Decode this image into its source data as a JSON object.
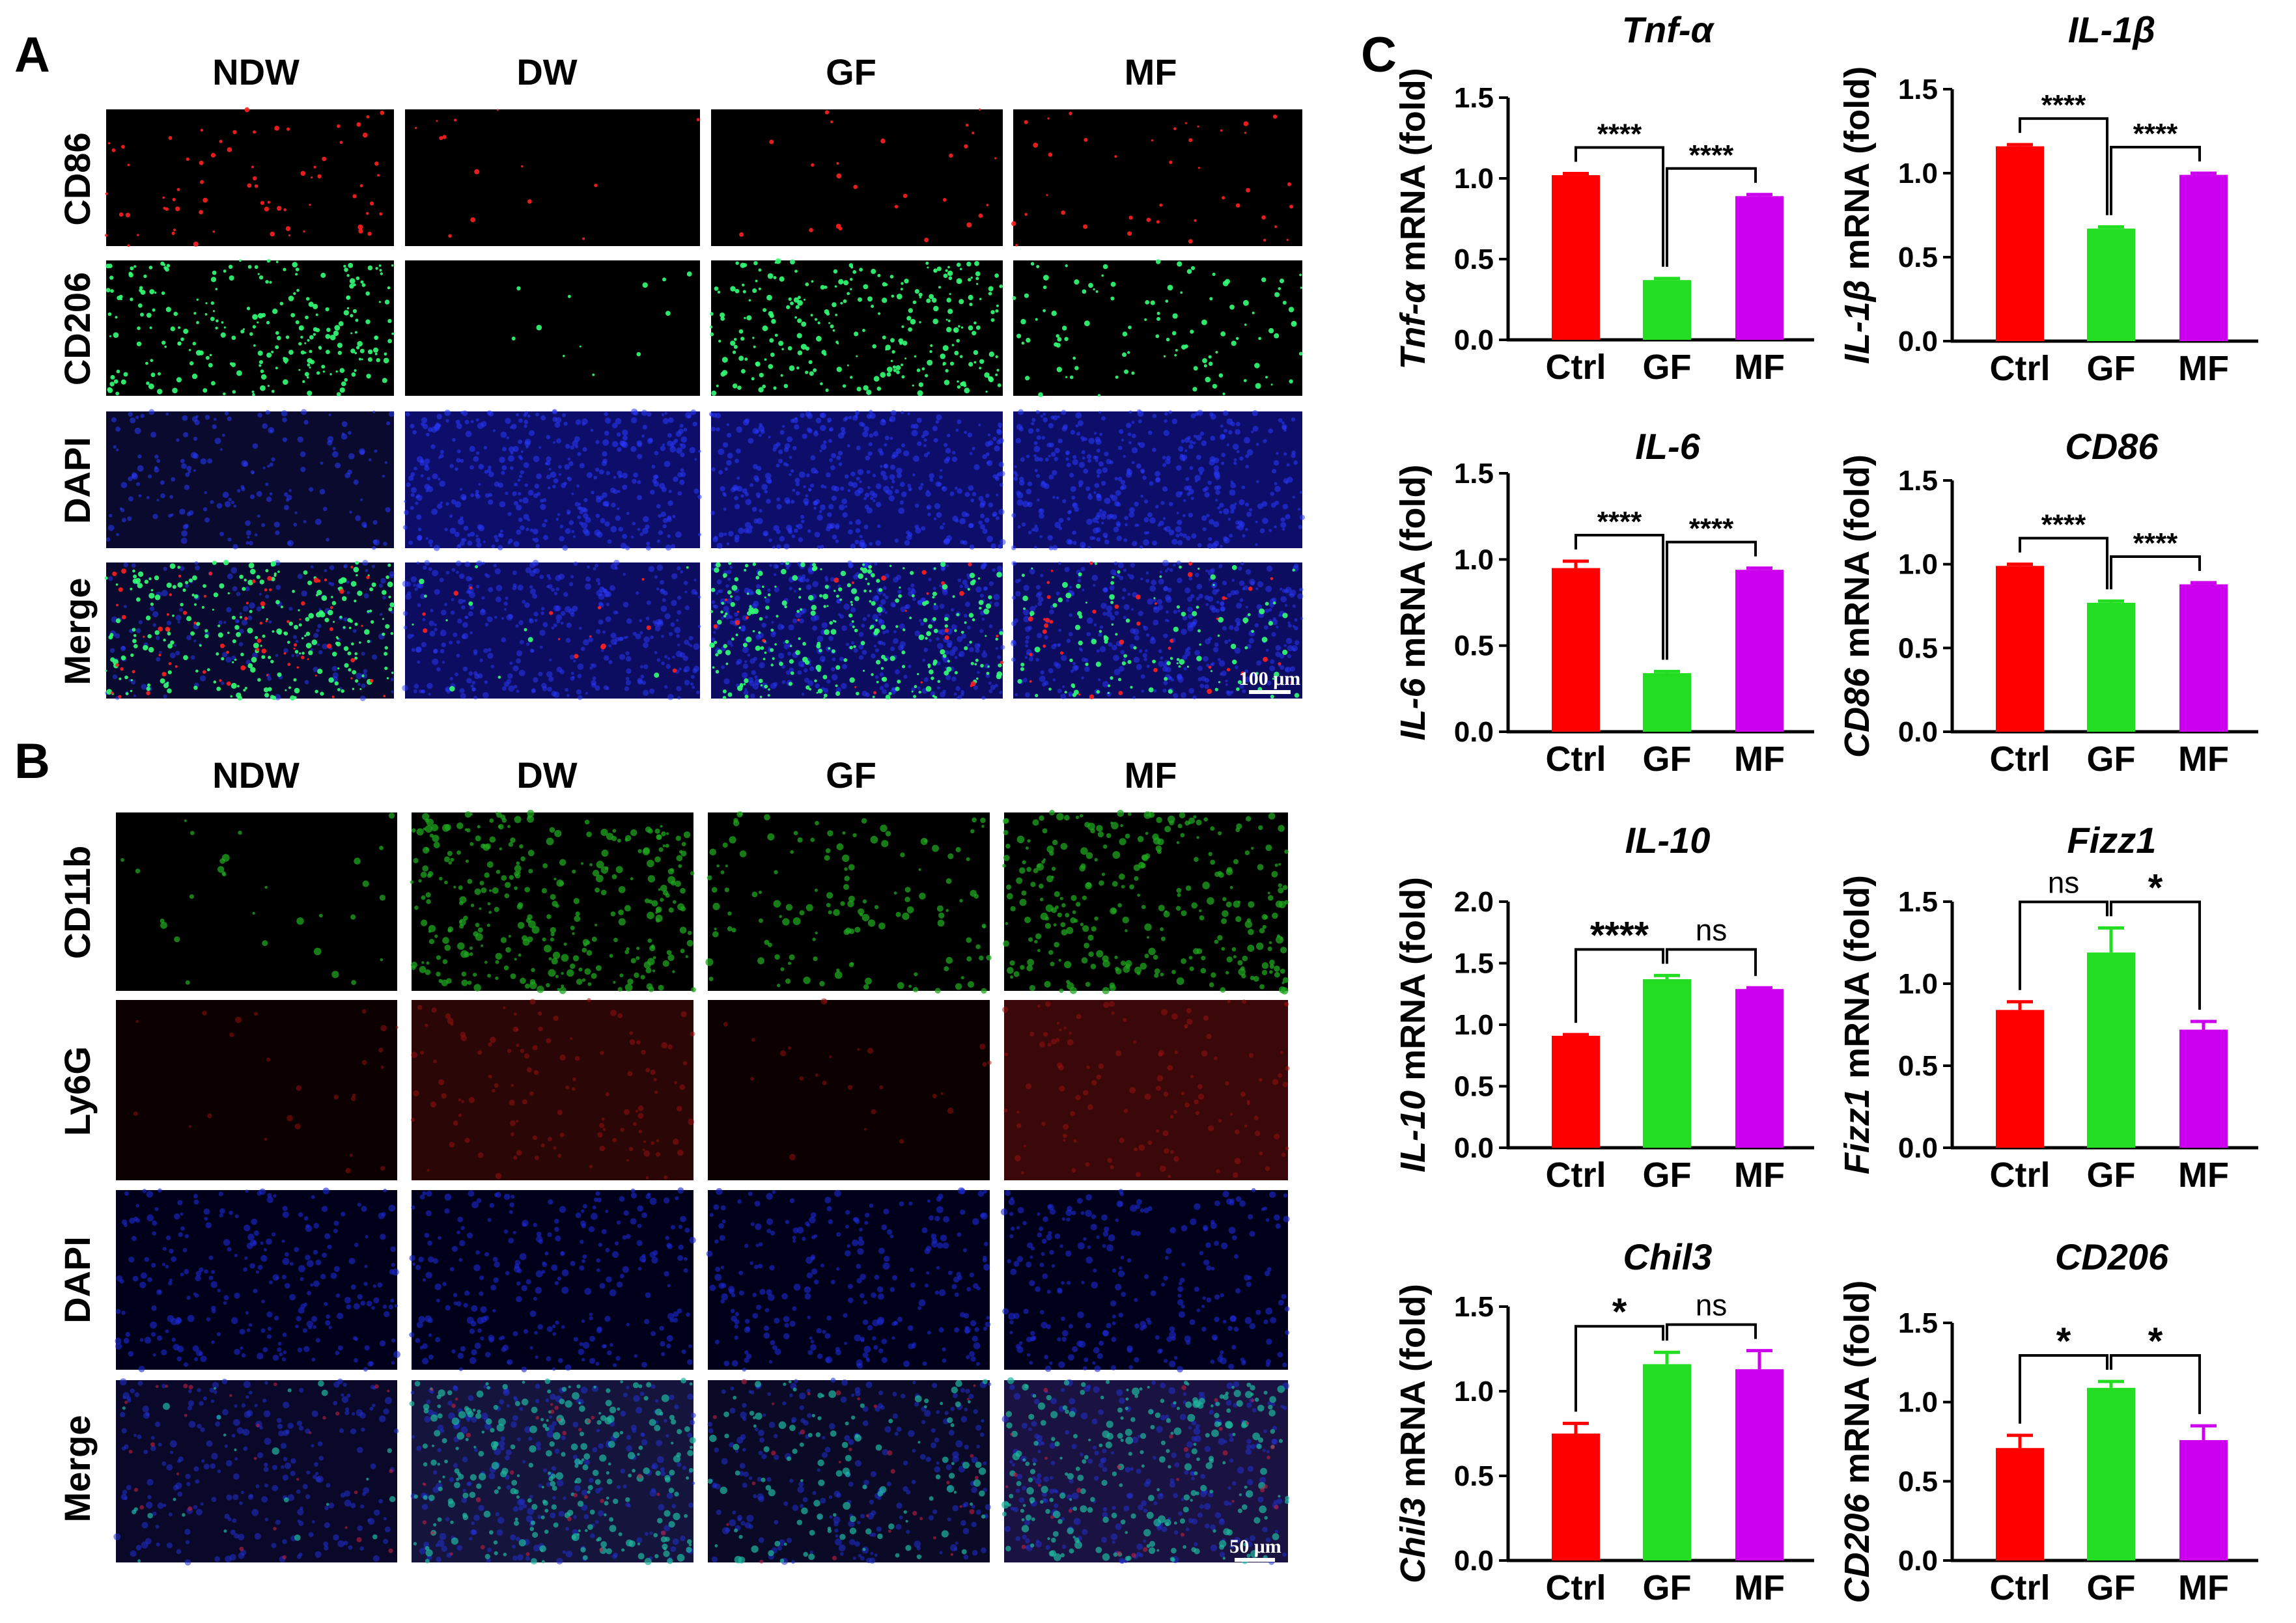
{
  "panels": {
    "A": "A",
    "B": "B",
    "C": "C"
  },
  "panelA": {
    "columns": [
      "NDW",
      "DW",
      "GF",
      "MF"
    ],
    "rows": [
      "CD86",
      "CD206",
      "DAPI",
      "Merge"
    ],
    "scale_bar": "100 μm"
  },
  "panelB": {
    "columns": [
      "NDW",
      "DW",
      "GF",
      "MF"
    ],
    "rows": [
      "CD11b",
      "Ly6G",
      "DAPI",
      "Merge"
    ],
    "scale_bar": "50 μm"
  },
  "colors": {
    "ctrl": "#ff0000",
    "gf": "#22dd22",
    "mf": "#cc00ee"
  },
  "chart_data": [
    {
      "type": "bar",
      "title": "Tnf-α",
      "ylabel_italic": "Tnf-α",
      "ylabel_rest": " mRNA (fold)",
      "categories": [
        "Ctrl",
        "GF",
        "MF"
      ],
      "values": [
        1.02,
        0.37,
        0.89
      ],
      "errors": [
        0.01,
        0.01,
        0.01
      ],
      "ylim": [
        0,
        1.5
      ],
      "yticks": [
        "0.0",
        "0.5",
        "1.0",
        "1.5"
      ],
      "comparisons": [
        {
          "from": 0,
          "to": 1,
          "label": "****"
        },
        {
          "from": 1,
          "to": 2,
          "label": "****"
        }
      ]
    },
    {
      "type": "bar",
      "title": "IL-1β",
      "ylabel_italic": "IL-1β",
      "ylabel_rest": " mRNA (fold)",
      "categories": [
        "Ctrl",
        "GF",
        "MF"
      ],
      "values": [
        1.16,
        0.67,
        0.99
      ],
      "errors": [
        0.01,
        0.01,
        0.01
      ],
      "ylim": [
        0,
        1.5
      ],
      "yticks": [
        "0.0",
        "0.5",
        "1.0",
        "1.5"
      ],
      "comparisons": [
        {
          "from": 0,
          "to": 1,
          "label": "****"
        },
        {
          "from": 1,
          "to": 2,
          "label": "****"
        }
      ]
    },
    {
      "type": "bar",
      "title": "IL-6",
      "ylabel_italic": "IL-6",
      "ylabel_rest": " mRNA (fold)",
      "categories": [
        "Ctrl",
        "GF",
        "MF"
      ],
      "values": [
        0.95,
        0.34,
        0.94
      ],
      "errors": [
        0.04,
        0.01,
        0.01
      ],
      "ylim": [
        0,
        1.5
      ],
      "yticks": [
        "0.0",
        "0.5",
        "1.0",
        "1.5"
      ],
      "comparisons": [
        {
          "from": 0,
          "to": 1,
          "label": "****"
        },
        {
          "from": 1,
          "to": 2,
          "label": "****"
        }
      ]
    },
    {
      "type": "bar",
      "title": "CD86",
      "ylabel_italic": "CD86",
      "ylabel_rest": " mRNA (fold)",
      "categories": [
        "Ctrl",
        "GF",
        "MF"
      ],
      "values": [
        0.99,
        0.77,
        0.88
      ],
      "errors": [
        0.01,
        0.01,
        0.01
      ],
      "ylim": [
        0,
        1.5
      ],
      "yticks": [
        "0.0",
        "0.5",
        "1.0",
        "1.5"
      ],
      "comparisons": [
        {
          "from": 0,
          "to": 1,
          "label": "****"
        },
        {
          "from": 1,
          "to": 2,
          "label": "****"
        }
      ]
    },
    {
      "type": "bar",
      "title": "IL-10",
      "ylabel_italic": "IL-10",
      "ylabel_rest": " mRNA (fold)",
      "categories": [
        "Ctrl",
        "GF",
        "MF"
      ],
      "values": [
        0.91,
        1.37,
        1.29
      ],
      "errors": [
        0.01,
        0.03,
        0.01
      ],
      "ylim": [
        0,
        2.0
      ],
      "yticks": [
        "0.0",
        "0.5",
        "1.0",
        "1.5",
        "2.0"
      ],
      "comparisons": [
        {
          "from": 0,
          "to": 1,
          "label": "****"
        },
        {
          "from": 1,
          "to": 2,
          "label": "ns"
        }
      ]
    },
    {
      "type": "bar",
      "title": "Fizz1",
      "ylabel_italic": "Fizz1",
      "ylabel_rest": " mRNA (fold)",
      "categories": [
        "Ctrl",
        "GF",
        "MF"
      ],
      "values": [
        0.84,
        1.19,
        0.72
      ],
      "errors": [
        0.05,
        0.15,
        0.05
      ],
      "ylim": [
        0,
        1.5
      ],
      "yticks": [
        "0.0",
        "0.5",
        "1.0",
        "1.5"
      ],
      "comparisons": [
        {
          "from": 0,
          "to": 1,
          "label": "ns"
        },
        {
          "from": 1,
          "to": 2,
          "label": "*"
        }
      ]
    },
    {
      "type": "bar",
      "title": "Chil3",
      "ylabel_italic": "Chil3",
      "ylabel_rest": " mRNA (fold)",
      "categories": [
        "Ctrl",
        "GF",
        "MF"
      ],
      "values": [
        0.75,
        1.16,
        1.13
      ],
      "errors": [
        0.06,
        0.07,
        0.11
      ],
      "ylim": [
        0,
        1.5
      ],
      "yticks": [
        "0.0",
        "0.5",
        "1.0",
        "1.5"
      ],
      "comparisons": [
        {
          "from": 0,
          "to": 1,
          "label": "*"
        },
        {
          "from": 1,
          "to": 2,
          "label": "ns"
        }
      ]
    },
    {
      "type": "bar",
      "title": "CD206",
      "ylabel_italic": "CD206",
      "ylabel_rest": " mRNA (fold)",
      "categories": [
        "Ctrl",
        "GF",
        "MF"
      ],
      "values": [
        0.71,
        1.09,
        0.76
      ],
      "errors": [
        0.08,
        0.04,
        0.09
      ],
      "ylim": [
        0,
        1.5
      ],
      "yticks": [
        "0.0",
        "0.5",
        "1.0",
        "1.5"
      ],
      "comparisons": [
        {
          "from": 0,
          "to": 1,
          "label": "*"
        },
        {
          "from": 1,
          "to": 2,
          "label": "*"
        }
      ]
    }
  ]
}
